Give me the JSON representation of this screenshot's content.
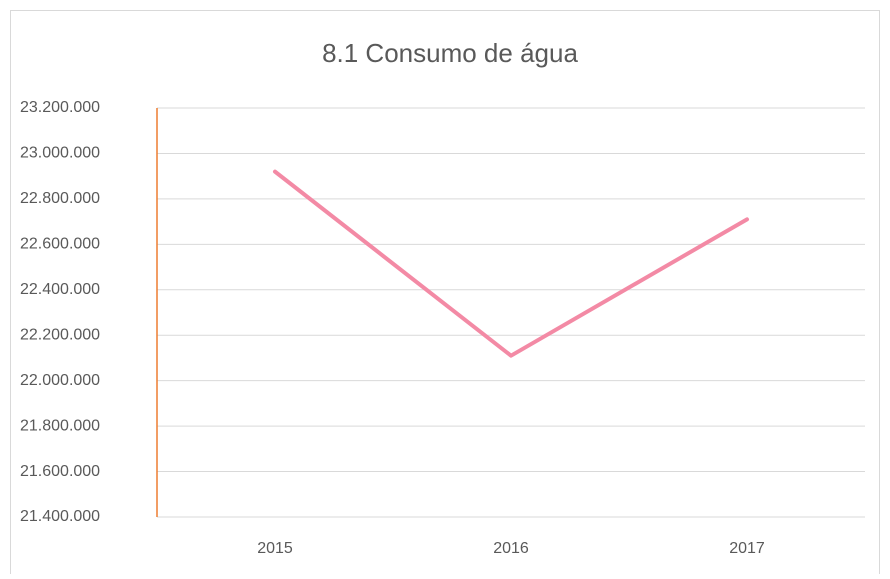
{
  "chart_data": {
    "type": "line",
    "title": "8.1 Consumo de água",
    "categories": [
      "2015",
      "2016",
      "2017"
    ],
    "series": [
      {
        "name": null,
        "color": "#f38aa5",
        "values": [
          22920000,
          22110000,
          22710000
        ]
      }
    ],
    "ylim": [
      21400000,
      23200000
    ],
    "yticks": [
      {
        "value": 21400000,
        "label": "21.400.000"
      },
      {
        "value": 21600000,
        "label": "21.600.000"
      },
      {
        "value": 21800000,
        "label": "21.800.000"
      },
      {
        "value": 22000000,
        "label": "22.000.000"
      },
      {
        "value": 22200000,
        "label": "22.200.000"
      },
      {
        "value": 22400000,
        "label": "22.400.000"
      },
      {
        "value": 22600000,
        "label": "22.600.000"
      },
      {
        "value": 22800000,
        "label": "22.800.000"
      },
      {
        "value": 23000000,
        "label": "23.000.000"
      },
      {
        "value": 23200000,
        "label": "23.200.000"
      }
    ],
    "grid": true
  }
}
